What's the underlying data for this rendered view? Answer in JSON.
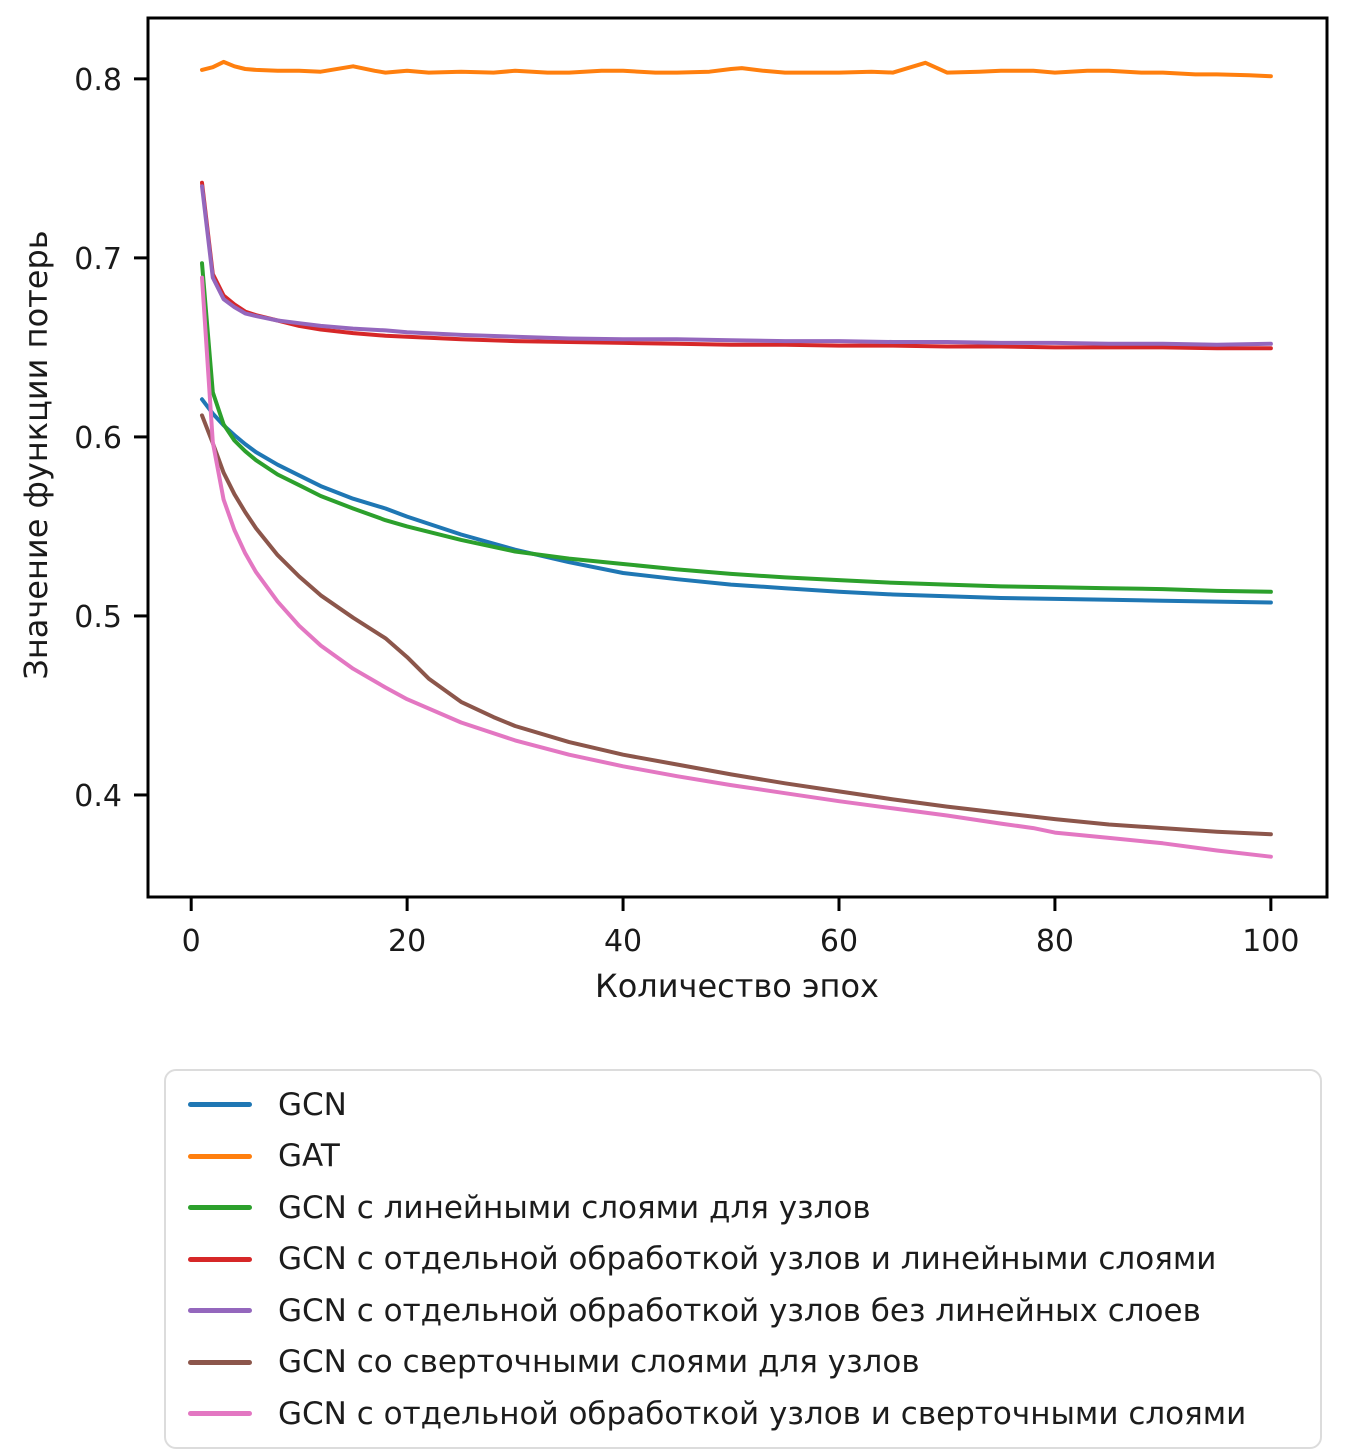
{
  "chart_data": {
    "type": "line",
    "title": "",
    "xlabel": "Количество эпох",
    "ylabel": "Значение функции потерь",
    "x_ticks": [
      0,
      20,
      40,
      60,
      80,
      100
    ],
    "y_ticks": [
      0.4,
      0.5,
      0.6,
      0.7,
      0.8
    ],
    "xlim": [
      -4,
      105.2
    ],
    "ylim": [
      0.343,
      0.834
    ],
    "grid": false,
    "legend_position": "below-plot",
    "axis_color": "#000000",
    "series": [
      {
        "name": "GCN",
        "color": "#1f77b4",
        "points": [
          [
            1,
            0.621
          ],
          [
            2,
            0.613
          ],
          [
            3,
            0.6065
          ],
          [
            4,
            0.601
          ],
          [
            5,
            0.596
          ],
          [
            6,
            0.5915
          ],
          [
            8,
            0.5845
          ],
          [
            10,
            0.5785
          ],
          [
            12,
            0.5725
          ],
          [
            15,
            0.5655
          ],
          [
            18,
            0.56
          ],
          [
            20,
            0.5555
          ],
          [
            25,
            0.5455
          ],
          [
            30,
            0.537
          ],
          [
            35,
            0.53
          ],
          [
            40,
            0.524
          ],
          [
            45,
            0.5205
          ],
          [
            50,
            0.5175
          ],
          [
            55,
            0.5155
          ],
          [
            60,
            0.5135
          ],
          [
            65,
            0.512
          ],
          [
            70,
            0.511
          ],
          [
            75,
            0.51
          ],
          [
            80,
            0.5095
          ],
          [
            85,
            0.509
          ],
          [
            90,
            0.5085
          ],
          [
            95,
            0.508
          ],
          [
            100,
            0.5075
          ]
        ]
      },
      {
        "name": "GAT",
        "color": "#ff7f0e",
        "points": [
          [
            1,
            0.805
          ],
          [
            2,
            0.8065
          ],
          [
            3,
            0.8095
          ],
          [
            4,
            0.807
          ],
          [
            5,
            0.8055
          ],
          [
            6,
            0.805
          ],
          [
            8,
            0.8045
          ],
          [
            10,
            0.8045
          ],
          [
            12,
            0.804
          ],
          [
            15,
            0.807
          ],
          [
            17,
            0.8045
          ],
          [
            18,
            0.8035
          ],
          [
            20,
            0.8045
          ],
          [
            22,
            0.8035
          ],
          [
            25,
            0.804
          ],
          [
            28,
            0.8035
          ],
          [
            30,
            0.8045
          ],
          [
            33,
            0.8035
          ],
          [
            35,
            0.8035
          ],
          [
            38,
            0.8045
          ],
          [
            40,
            0.8045
          ],
          [
            43,
            0.8035
          ],
          [
            45,
            0.8035
          ],
          [
            48,
            0.804
          ],
          [
            50,
            0.8055
          ],
          [
            51,
            0.806
          ],
          [
            53,
            0.8045
          ],
          [
            55,
            0.8035
          ],
          [
            58,
            0.8035
          ],
          [
            60,
            0.8035
          ],
          [
            63,
            0.804
          ],
          [
            65,
            0.8035
          ],
          [
            68,
            0.809
          ],
          [
            70,
            0.8035
          ],
          [
            73,
            0.804
          ],
          [
            75,
            0.8045
          ],
          [
            78,
            0.8045
          ],
          [
            80,
            0.8035
          ],
          [
            83,
            0.8045
          ],
          [
            85,
            0.8045
          ],
          [
            88,
            0.8035
          ],
          [
            90,
            0.8035
          ],
          [
            93,
            0.8025
          ],
          [
            95,
            0.8025
          ],
          [
            98,
            0.802
          ],
          [
            100,
            0.8015
          ]
        ]
      },
      {
        "name": "GCN с линейными слоями для узлов",
        "color": "#2ca02c",
        "points": [
          [
            1,
            0.697
          ],
          [
            2,
            0.625
          ],
          [
            3,
            0.607
          ],
          [
            4,
            0.598
          ],
          [
            5,
            0.592
          ],
          [
            6,
            0.587
          ],
          [
            8,
            0.579
          ],
          [
            10,
            0.573
          ],
          [
            12,
            0.567
          ],
          [
            15,
            0.56
          ],
          [
            18,
            0.5535
          ],
          [
            20,
            0.55
          ],
          [
            25,
            0.5425
          ],
          [
            30,
            0.536
          ],
          [
            35,
            0.532
          ],
          [
            40,
            0.529
          ],
          [
            45,
            0.526
          ],
          [
            50,
            0.5235
          ],
          [
            55,
            0.5215
          ],
          [
            60,
            0.52
          ],
          [
            65,
            0.5185
          ],
          [
            70,
            0.5175
          ],
          [
            75,
            0.5165
          ],
          [
            80,
            0.516
          ],
          [
            85,
            0.5155
          ],
          [
            90,
            0.515
          ],
          [
            95,
            0.514
          ],
          [
            100,
            0.5135
          ]
        ]
      },
      {
        "name": "GCN с отдельной обработкой узлов и линейными слоями",
        "color": "#d62728",
        "points": [
          [
            1,
            0.742
          ],
          [
            2,
            0.691
          ],
          [
            3,
            0.679
          ],
          [
            4,
            0.674
          ],
          [
            5,
            0.67
          ],
          [
            6,
            0.668
          ],
          [
            8,
            0.665
          ],
          [
            10,
            0.662
          ],
          [
            12,
            0.66
          ],
          [
            15,
            0.658
          ],
          [
            18,
            0.6565
          ],
          [
            20,
            0.656
          ],
          [
            25,
            0.6545
          ],
          [
            30,
            0.6535
          ],
          [
            35,
            0.653
          ],
          [
            40,
            0.6525
          ],
          [
            45,
            0.652
          ],
          [
            50,
            0.6515
          ],
          [
            55,
            0.6515
          ],
          [
            60,
            0.651
          ],
          [
            65,
            0.651
          ],
          [
            70,
            0.6505
          ],
          [
            75,
            0.6505
          ],
          [
            80,
            0.65
          ],
          [
            85,
            0.65
          ],
          [
            90,
            0.65
          ],
          [
            95,
            0.6495
          ],
          [
            100,
            0.6495
          ]
        ]
      },
      {
        "name": "GCN с отдельной обработкой узлов без линейных слоев",
        "color": "#9467bd",
        "points": [
          [
            1,
            0.74
          ],
          [
            2,
            0.689
          ],
          [
            3,
            0.677
          ],
          [
            4,
            0.6725
          ],
          [
            5,
            0.669
          ],
          [
            6,
            0.6675
          ],
          [
            8,
            0.665
          ],
          [
            10,
            0.6635
          ],
          [
            12,
            0.662
          ],
          [
            15,
            0.6605
          ],
          [
            18,
            0.6595
          ],
          [
            20,
            0.6585
          ],
          [
            25,
            0.657
          ],
          [
            30,
            0.656
          ],
          [
            35,
            0.655
          ],
          [
            40,
            0.6545
          ],
          [
            45,
            0.6545
          ],
          [
            50,
            0.654
          ],
          [
            55,
            0.6535
          ],
          [
            60,
            0.6535
          ],
          [
            65,
            0.653
          ],
          [
            70,
            0.653
          ],
          [
            75,
            0.6525
          ],
          [
            80,
            0.6525
          ],
          [
            85,
            0.652
          ],
          [
            90,
            0.652
          ],
          [
            95,
            0.6515
          ],
          [
            100,
            0.652
          ]
        ]
      },
      {
        "name": "GCN со сверточными слоями для узлов",
        "color": "#8c564b",
        "points": [
          [
            1,
            0.612
          ],
          [
            2,
            0.5965
          ],
          [
            3,
            0.58
          ],
          [
            4,
            0.568
          ],
          [
            5,
            0.558
          ],
          [
            6,
            0.549
          ],
          [
            8,
            0.534
          ],
          [
            10,
            0.522
          ],
          [
            12,
            0.5115
          ],
          [
            15,
            0.499
          ],
          [
            18,
            0.4875
          ],
          [
            20,
            0.477
          ],
          [
            22,
            0.465
          ],
          [
            25,
            0.452
          ],
          [
            28,
            0.4435
          ],
          [
            30,
            0.4385
          ],
          [
            35,
            0.4295
          ],
          [
            40,
            0.4225
          ],
          [
            45,
            0.417
          ],
          [
            50,
            0.4115
          ],
          [
            55,
            0.4065
          ],
          [
            60,
            0.402
          ],
          [
            65,
            0.3975
          ],
          [
            70,
            0.3935
          ],
          [
            75,
            0.39
          ],
          [
            80,
            0.3865
          ],
          [
            85,
            0.3835
          ],
          [
            90,
            0.3815
          ],
          [
            95,
            0.3795
          ],
          [
            100,
            0.378
          ]
        ]
      },
      {
        "name": "GCN с отдельной обработкой узлов и сверточными слоями",
        "color": "#e377c2",
        "points": [
          [
            1,
            0.689
          ],
          [
            2,
            0.597
          ],
          [
            3,
            0.565
          ],
          [
            4,
            0.548
          ],
          [
            5,
            0.535
          ],
          [
            6,
            0.5245
          ],
          [
            8,
            0.508
          ],
          [
            10,
            0.4945
          ],
          [
            12,
            0.4835
          ],
          [
            15,
            0.4705
          ],
          [
            18,
            0.46
          ],
          [
            20,
            0.4535
          ],
          [
            25,
            0.4405
          ],
          [
            30,
            0.4305
          ],
          [
            35,
            0.4225
          ],
          [
            40,
            0.416
          ],
          [
            45,
            0.4105
          ],
          [
            50,
            0.4055
          ],
          [
            55,
            0.401
          ],
          [
            60,
            0.3965
          ],
          [
            65,
            0.3925
          ],
          [
            70,
            0.3885
          ],
          [
            75,
            0.384
          ],
          [
            78,
            0.3815
          ],
          [
            80,
            0.379
          ],
          [
            85,
            0.376
          ],
          [
            90,
            0.373
          ],
          [
            95,
            0.369
          ],
          [
            100,
            0.3655
          ]
        ]
      }
    ]
  }
}
